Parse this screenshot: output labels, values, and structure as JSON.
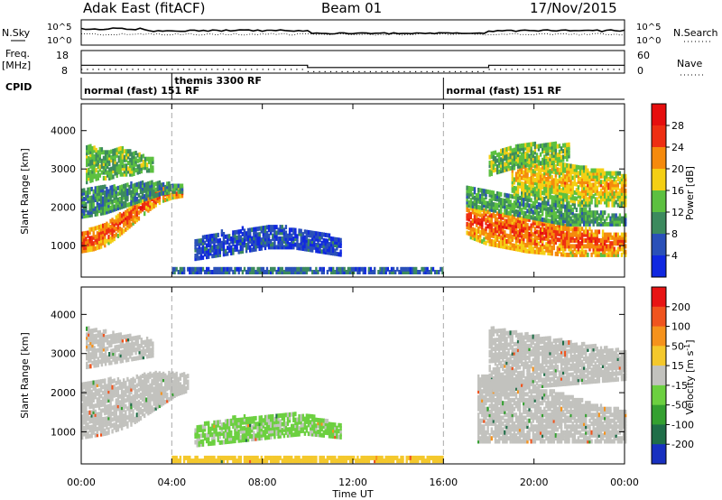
{
  "header": {
    "station": "Adak East (fitACF)",
    "beam": "Beam 01",
    "date": "17/Nov/2015"
  },
  "top_panels": {
    "nsky_label": "N.Sky",
    "nsearch_label": "N.Search",
    "noise_ticks_left": [
      "10^5",
      "10^0"
    ],
    "noise_ticks_right": [
      "10^5",
      "10^0"
    ],
    "freq_label": "Freq.",
    "freq_unit": "[MHz]",
    "freq_ticks": [
      "18",
      "8"
    ],
    "nave_label": "Nave",
    "nave_ticks": [
      "60",
      "0"
    ],
    "cpid_label": "CPID",
    "cpid_segments": [
      {
        "label": "normal (fast) 151 RF",
        "start_h": 0,
        "end_h": 4
      },
      {
        "label": "themis 3300 RF",
        "start_h": 4,
        "end_h": 16
      },
      {
        "label": "normal (fast) 151 RF",
        "start_h": 16,
        "end_h": 24
      }
    ],
    "freq_steps": [
      {
        "start_h": 0,
        "end_h": 10,
        "mhz": 11.5
      },
      {
        "start_h": 10,
        "end_h": 18,
        "mhz": 10.5
      },
      {
        "start_h": 18,
        "end_h": 24,
        "mhz": 11.5
      }
    ]
  },
  "chart_data": [
    {
      "type": "heatmap",
      "quantity": "Power",
      "ylabel": "Slant Range [km]",
      "xlabel": "Time UT",
      "xlim": [
        0,
        24
      ],
      "ylim": [
        180,
        4700
      ],
      "x_ticks": [
        "00:00",
        "04:00",
        "08:00",
        "12:00",
        "16:00",
        "20:00",
        "00:00"
      ],
      "y_ticks": [
        1000,
        2000,
        3000,
        4000
      ],
      "colorbar_label": "Power [dB]",
      "colorbar_ticks": [
        "4",
        "8",
        "12",
        "16",
        "20",
        "24",
        "28"
      ],
      "colorbar_colors": [
        "#1028e0",
        "#2a50b8",
        "#3c8a5e",
        "#5cc040",
        "#f4cf14",
        "#f58a0c",
        "#ee2e12",
        "#e60e0e"
      ],
      "vlines_h": [
        4,
        16
      ],
      "echo_regions": [
        {
          "h0": 0,
          "h1": 4.5,
          "r_start": [
            800,
            850,
            950,
            1150,
            1400,
            1650,
            1900,
            2100,
            2200,
            2250
          ],
          "r_end": [
            1300,
            1400,
            1550,
            1700,
            1900,
            2100,
            2300,
            2450,
            2500,
            2450
          ],
          "level": 26
        },
        {
          "h0": 0,
          "h1": 4.5,
          "r_start": [
            1700,
            1750,
            1800,
            1900,
            2000,
            2100,
            2200,
            2300,
            2350,
            2350
          ],
          "r_end": [
            2400,
            2450,
            2500,
            2500,
            2550,
            2600,
            2600,
            2600,
            2550,
            2500
          ],
          "level": 10
        },
        {
          "h0": 0.2,
          "h1": 3.2,
          "r_start": [
            2600,
            2700,
            2700,
            2800,
            2800,
            2900,
            2900
          ],
          "r_end": [
            3600,
            3500,
            3400,
            3500,
            3400,
            3300,
            3200
          ],
          "level": 13
        },
        {
          "h0": 5,
          "h1": 11.5,
          "r_start": [
            600,
            700,
            800,
            900,
            900,
            800,
            700
          ],
          "r_end": [
            1100,
            1300,
            1400,
            1500,
            1400,
            1300,
            1100
          ],
          "level": 5
        },
        {
          "h0": 4,
          "h1": 16,
          "r_start": [
            250
          ],
          "r_end": [
            350
          ],
          "level": 7
        },
        {
          "h0": 17,
          "h1": 24,
          "r_start": [
            1200,
            1000,
            900,
            800,
            750,
            700,
            700,
            700,
            700
          ],
          "r_end": [
            2000,
            1900,
            1800,
            1700,
            1600,
            1500,
            1400,
            1300,
            1300
          ],
          "level": 26
        },
        {
          "h0": 17,
          "h1": 24,
          "r_start": [
            2000,
            1900,
            1800,
            1700,
            1600,
            1500,
            1500,
            1500,
            1500
          ],
          "r_end": [
            2500,
            2400,
            2300,
            2200,
            2100,
            2000,
            1900,
            1800,
            1800
          ],
          "level": 11
        },
        {
          "h0": 19,
          "h1": 24,
          "r_start": [
            2300,
            2200,
            2100,
            2000,
            2000,
            2000
          ],
          "r_end": [
            3300,
            3200,
            3100,
            3000,
            2900,
            2800
          ],
          "level": 21
        },
        {
          "h0": 18,
          "h1": 21.5,
          "r_start": [
            2800,
            3000,
            3100,
            3200
          ],
          "r_end": [
            3400,
            3600,
            3600,
            3600
          ],
          "level": 14
        }
      ]
    },
    {
      "type": "heatmap",
      "quantity": "Velocity",
      "ylabel": "Slant Range [km]",
      "xlabel": "Time UT",
      "xlim": [
        0,
        24
      ],
      "ylim": [
        180,
        4700
      ],
      "x_ticks": [
        "00:00",
        "04:00",
        "08:00",
        "12:00",
        "16:00",
        "20:00",
        "00:00"
      ],
      "y_ticks": [
        1000,
        2000,
        3000,
        4000
      ],
      "colorbar_label": "Velocity [m s",
      "colorbar_label_sup": "-1",
      "colorbar_label_end": "]",
      "colorbar_ticks": [
        "200",
        "100",
        "50",
        "15",
        "-15",
        "-50",
        "-100",
        "-200"
      ],
      "colorbar_colors": [
        "#1830c0",
        "#1f6e48",
        "#34a030",
        "#6cd040",
        "#c2c2be",
        "#f4c82c",
        "#f5921c",
        "#f0541e",
        "#e81414"
      ],
      "vlines_h": [
        4,
        16
      ],
      "echo_regions": [
        {
          "h0": 0,
          "h1": 4.7,
          "r_start": [
            800,
            850,
            900,
            1000,
            1100,
            1300,
            1500,
            1700,
            1900,
            2000
          ],
          "r_end": [
            2200,
            2200,
            2300,
            2300,
            2300,
            2400,
            2450,
            2450,
            2450,
            2400
          ],
          "level": 0
        },
        {
          "h0": 0.2,
          "h1": 3.2,
          "r_start": [
            2600,
            2700,
            2800,
            2900
          ],
          "r_end": [
            3600,
            3500,
            3400,
            3300
          ],
          "level": 0
        },
        {
          "h0": 5,
          "h1": 11.5,
          "r_start": [
            600,
            700,
            800,
            900,
            800
          ],
          "r_end": [
            1100,
            1300,
            1400,
            1400,
            1100
          ],
          "level": 20
        },
        {
          "h0": 4,
          "h1": 16,
          "r_start": [
            200
          ],
          "r_end": [
            350
          ],
          "level": -25
        },
        {
          "h0": 17.5,
          "h1": 24,
          "r_start": [
            700,
            700,
            700,
            700,
            700,
            700,
            700
          ],
          "r_end": [
            2400,
            2300,
            2100,
            2000,
            1800,
            1600,
            1500
          ],
          "level": 0
        },
        {
          "h0": 18,
          "h1": 24,
          "r_start": [
            2000,
            2100,
            2200,
            2300
          ],
          "r_end": [
            3600,
            3400,
            3200,
            3000
          ],
          "level": 0
        }
      ]
    }
  ]
}
